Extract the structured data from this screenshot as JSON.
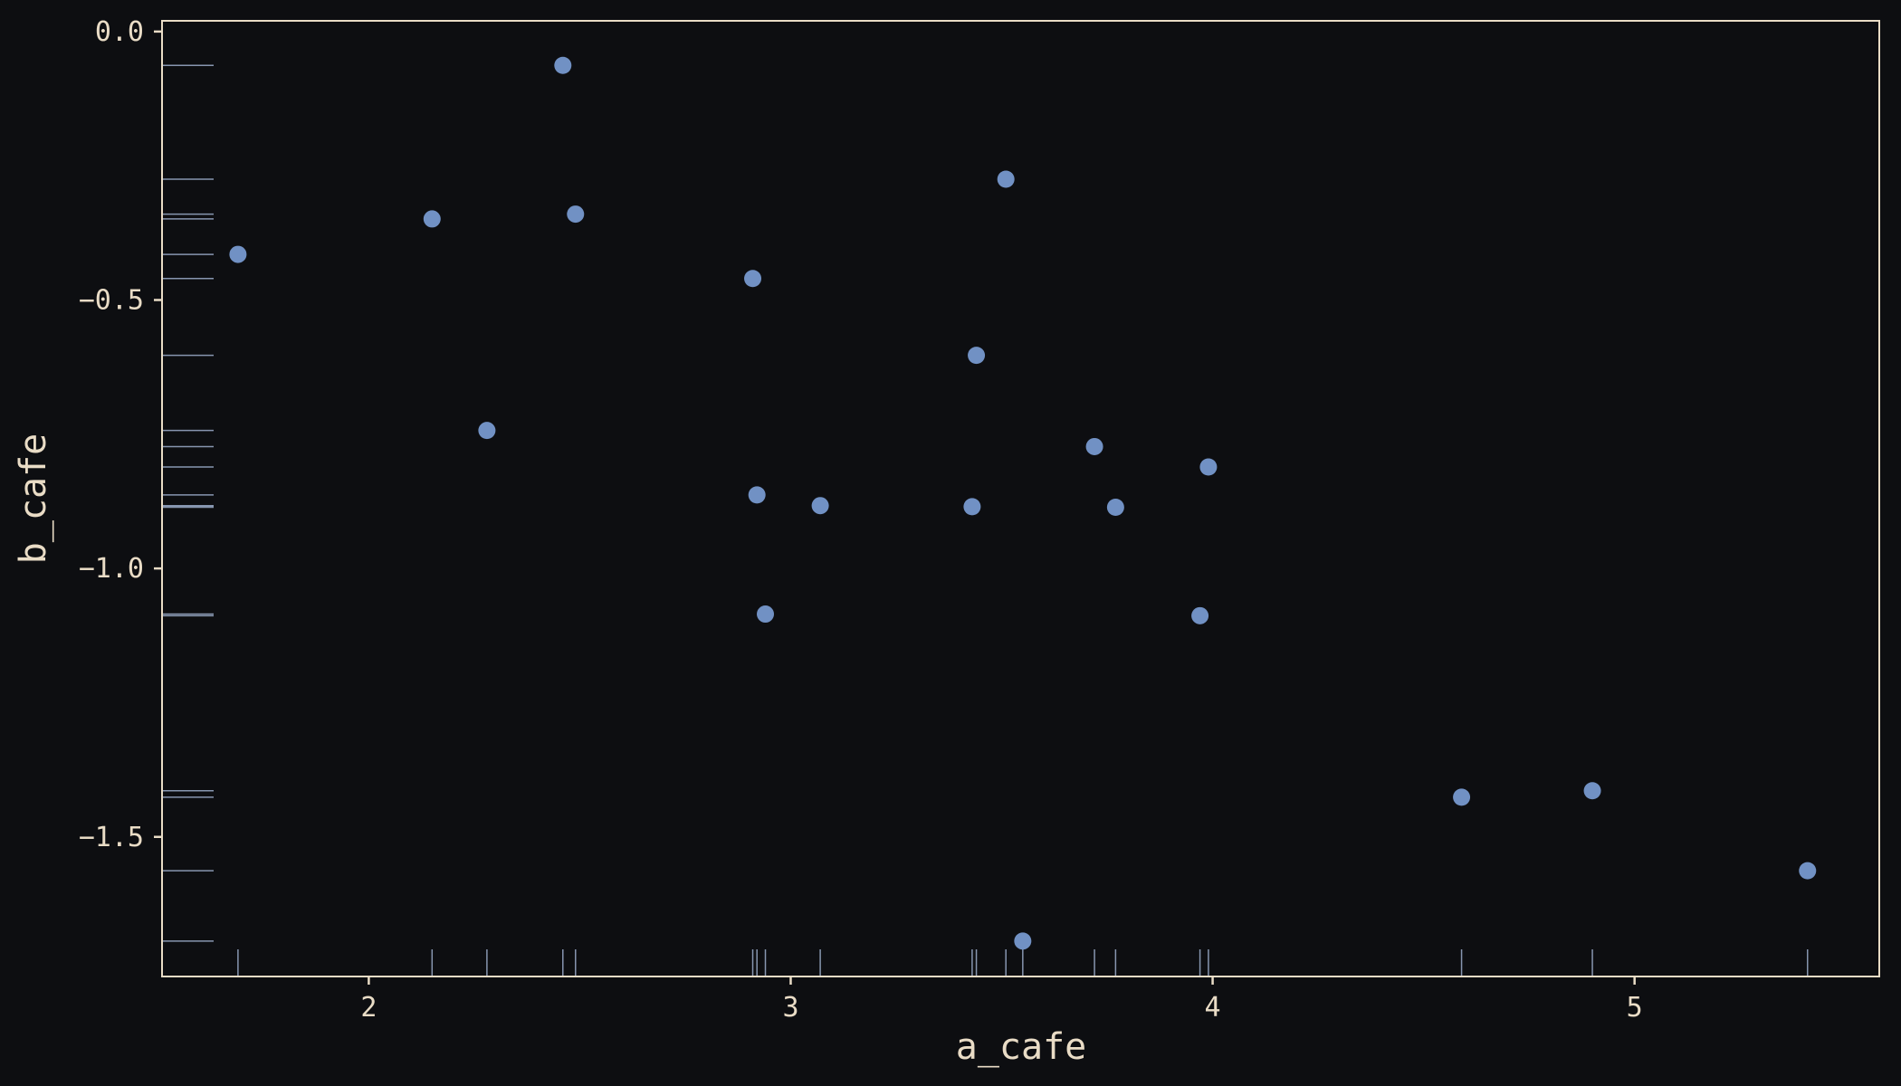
{
  "chart_data": {
    "type": "scatter",
    "title": "",
    "xlabel": "a_cafe",
    "ylabel": "b_cafe",
    "xlim": [
      1.51,
      5.58
    ],
    "ylim": [
      -1.76,
      0.02
    ],
    "xticks": [
      2,
      3,
      4,
      5
    ],
    "xtick_labels": [
      "2",
      "3",
      "4",
      "5"
    ],
    "yticks": [
      0.0,
      -0.5,
      -1.0,
      -1.5
    ],
    "ytick_labels": [
      "0.0",
      "−0.5",
      "−1.0",
      "−1.5"
    ],
    "grid": false,
    "rug": true,
    "points": [
      {
        "x": 1.69,
        "y": -0.415
      },
      {
        "x": 2.15,
        "y": -0.349
      },
      {
        "x": 2.28,
        "y": -0.743
      },
      {
        "x": 2.46,
        "y": -0.063
      },
      {
        "x": 2.49,
        "y": -0.34
      },
      {
        "x": 2.91,
        "y": -0.46
      },
      {
        "x": 2.92,
        "y": -0.863
      },
      {
        "x": 2.94,
        "y": -1.085
      },
      {
        "x": 3.07,
        "y": -0.883
      },
      {
        "x": 3.43,
        "y": -0.885
      },
      {
        "x": 3.44,
        "y": -0.603
      },
      {
        "x": 3.51,
        "y": -0.275
      },
      {
        "x": 3.55,
        "y": -1.694
      },
      {
        "x": 3.72,
        "y": -0.773
      },
      {
        "x": 3.77,
        "y": -0.886
      },
      {
        "x": 3.97,
        "y": -1.088
      },
      {
        "x": 3.99,
        "y": -0.811
      },
      {
        "x": 4.59,
        "y": -1.426
      },
      {
        "x": 4.9,
        "y": -1.414
      },
      {
        "x": 5.41,
        "y": -1.563
      }
    ]
  },
  "colors": {
    "background": "#0d0e11",
    "axis": "#e9dcc6",
    "point": "#7191c4",
    "rug": "#8796b0"
  }
}
